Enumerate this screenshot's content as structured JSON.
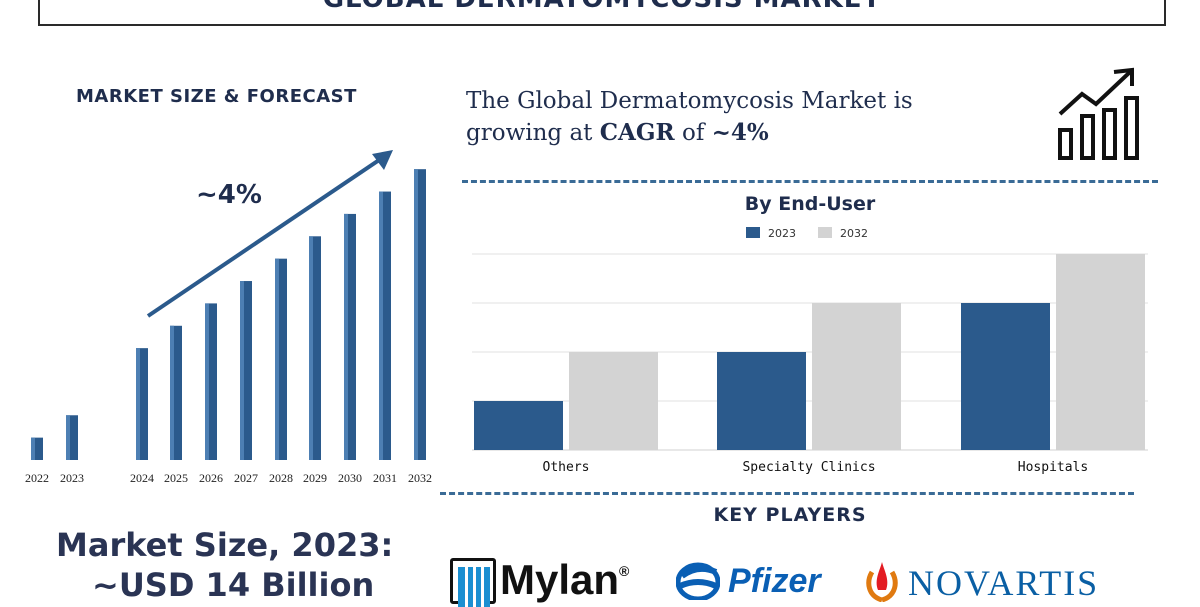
{
  "title": "GLOBAL DERMATOMYCOSIS MARKET",
  "forecast_section": {
    "title": "MARKET SIZE & FORECAST",
    "cagr_label": "~4%"
  },
  "headline": {
    "part1": "The Global Dermatomycosis Market is",
    "part2": "growing at ",
    "cagr_word": "CAGR",
    "part3": " of ",
    "cagr_value": "~4%"
  },
  "key_players": {
    "title": "KEY PLAYERS",
    "logos": [
      "Mylan",
      "Pfizer",
      "NOVARTIS"
    ],
    "registered_mark": "®"
  },
  "market_size": {
    "label": "Market Size, 2023:",
    "value": "~USD 14 Billion"
  },
  "colors": {
    "navy": "#1f2d4d",
    "bar_blue": "#2b5a8c",
    "bar_grey": "#d3d3d3",
    "dash": "#3a6b96"
  },
  "chart_data": [
    {
      "type": "bar",
      "title": "MARKET SIZE & FORECAST",
      "categories": [
        "2022",
        "2023",
        "2024",
        "2025",
        "2026",
        "2027",
        "2028",
        "2029",
        "2030",
        "2031",
        "2032"
      ],
      "values": [
        1.0,
        2.0,
        5.0,
        6.0,
        7.0,
        8.0,
        9.0,
        10.0,
        11.0,
        12.0,
        13.0
      ],
      "ylim": [
        0,
        13.5
      ],
      "grid": false,
      "annotation": "~4%"
    },
    {
      "type": "bar",
      "title": "By End-User",
      "categories": [
        "Others",
        "Specialty Clinics",
        "Hospitals"
      ],
      "series": [
        {
          "name": "2023",
          "values": [
            1,
            2,
            3
          ]
        },
        {
          "name": "2032",
          "values": [
            2,
            3,
            4
          ]
        }
      ],
      "ylim": [
        0,
        4
      ],
      "grid": true,
      "legend": "top-center"
    }
  ]
}
